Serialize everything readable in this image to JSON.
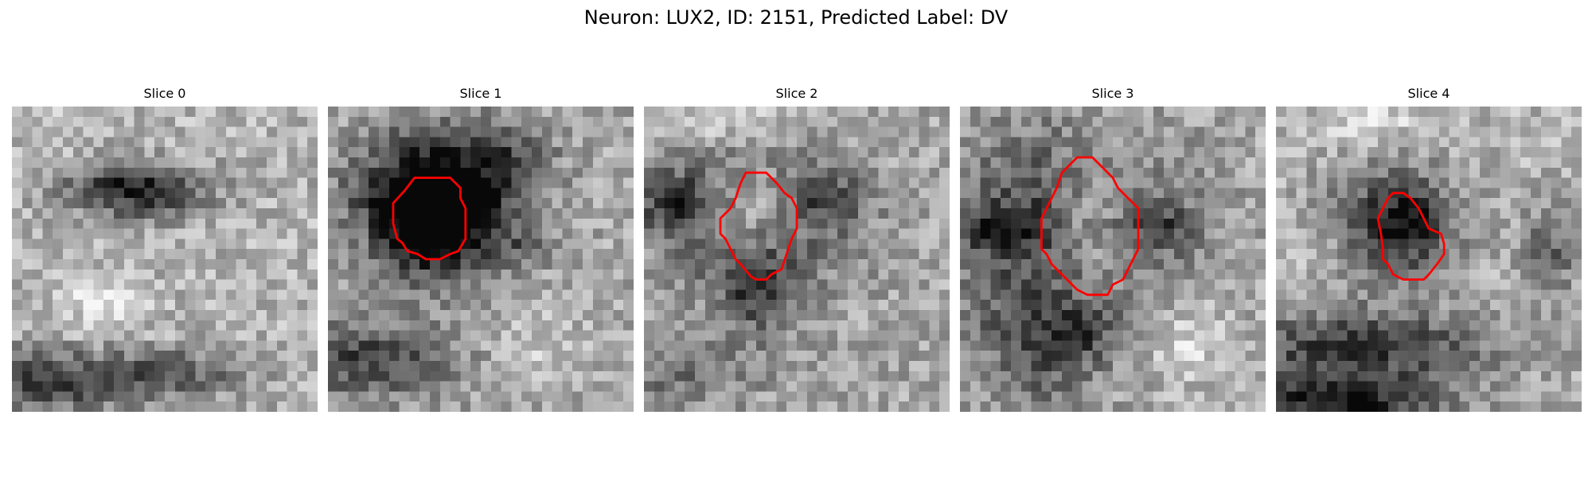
{
  "figure": {
    "title": "Neuron: LUX2, ID: 2151, Predicted Label: DV",
    "outline_color": "#ff0000",
    "colormap": "grayscale",
    "panels": [
      {
        "title": "Slice 0",
        "has_outline": false
      },
      {
        "title": "Slice 1",
        "has_outline": true
      },
      {
        "title": "Slice 2",
        "has_outline": true
      },
      {
        "title": "Slice 3",
        "has_outline": true
      },
      {
        "title": "Slice 4",
        "has_outline": true
      }
    ]
  }
}
